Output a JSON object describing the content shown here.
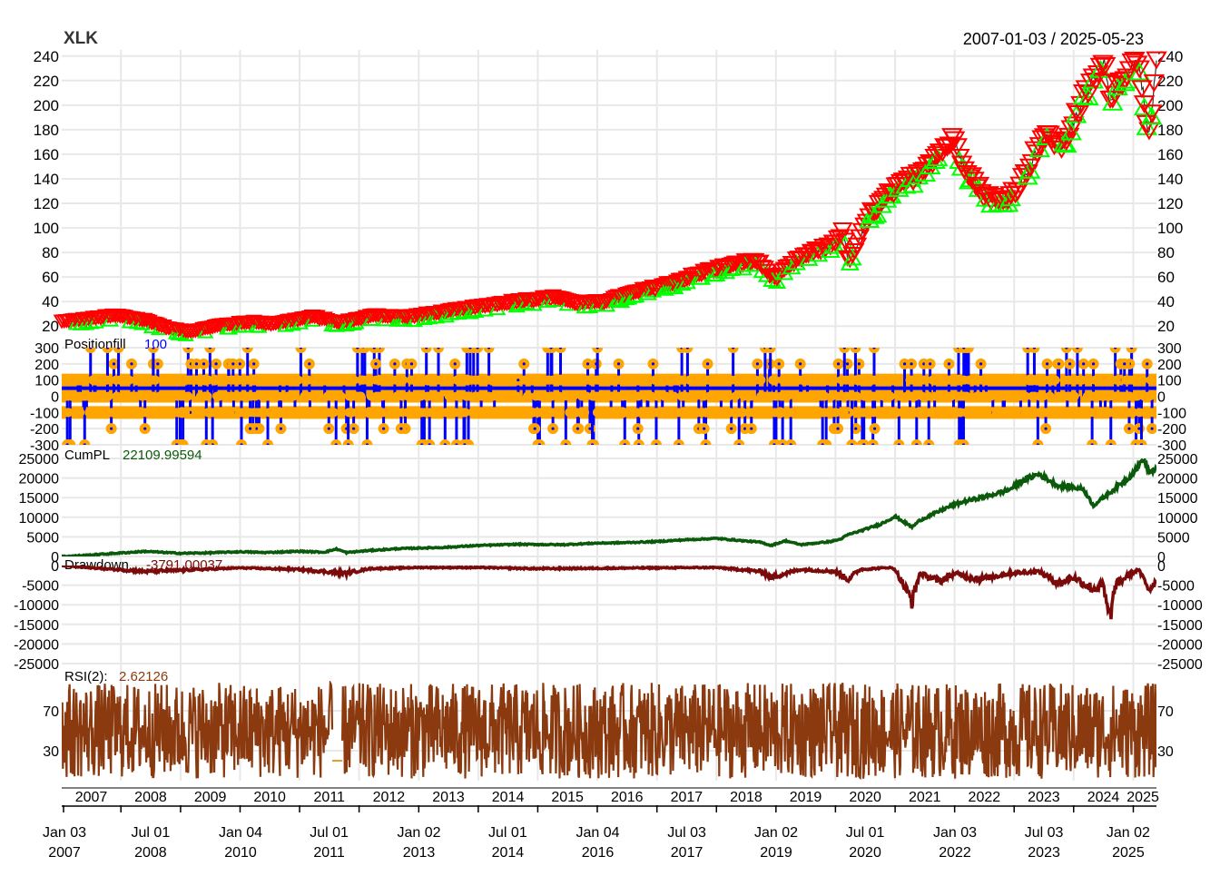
{
  "chart_data": [
    {
      "type": "line",
      "panel": "price",
      "title": "XLK",
      "date_range_label": "2007-01-03 / 2025-05-23",
      "ylim": [
        15,
        245
      ],
      "yticks": [
        20,
        40,
        60,
        80,
        100,
        120,
        140,
        160,
        180,
        200,
        220,
        240
      ],
      "grid": true,
      "series": [
        {
          "color": "#ff0000",
          "x": [
            "2007-01-03",
            "2007-06-01",
            "2007-12-01",
            "2008-06-01",
            "2008-11-01",
            "2009-03-09",
            "2009-09-01",
            "2010-04-01",
            "2010-07-01",
            "2011-04-01",
            "2011-09-01",
            "2012-04-01",
            "2012-11-01",
            "2013-06-01",
            "2014-01-01",
            "2014-09-01",
            "2015-05-01",
            "2015-08-24",
            "2016-02-01",
            "2016-09-01",
            "2017-03-01",
            "2017-12-01",
            "2018-09-01",
            "2018-12-24",
            "2019-06-01",
            "2019-12-01",
            "2020-02-19",
            "2020-03-23",
            "2020-08-01",
            "2020-12-01",
            "2021-06-01",
            "2021-12-27",
            "2022-03-01",
            "2022-06-16",
            "2022-10-13",
            "2023-02-01",
            "2023-07-01",
            "2023-10-27",
            "2024-03-01",
            "2024-07-10",
            "2024-08-05",
            "2024-12-01",
            "2025-02-01",
            "2025-04-08",
            "2025-05-23"
          ],
          "values": [
            23,
            25,
            28,
            24,
            17,
            15,
            20,
            23,
            21,
            27,
            22,
            28,
            27,
            31,
            35,
            40,
            43,
            38,
            39,
            47,
            53,
            65,
            73,
            58,
            75,
            85,
            96,
            70,
            110,
            127,
            145,
            172,
            150,
            128,
            120,
            133,
            175,
            165,
            205,
            235,
            205,
            228,
            238,
            175,
            231
          ]
        }
      ],
      "markers": [
        {
          "symbol": "triangle-up",
          "color": "#00ff00",
          "meaning": "entries"
        },
        {
          "symbol": "triangle-down",
          "color": "#ff0000",
          "meaning": "exits"
        }
      ]
    },
    {
      "type": "bar",
      "panel": "positionfill",
      "label": "Positionfill",
      "last_value": "100",
      "ylim": [
        -300,
        300
      ],
      "yticks": [
        -300,
        -200,
        -100,
        0,
        100,
        200,
        300
      ],
      "series": [
        {
          "color": "#0000ff",
          "point_color": "#ffa500"
        }
      ],
      "levels": [
        -300,
        -200,
        -100,
        0,
        100,
        200,
        300
      ]
    },
    {
      "type": "line",
      "panel": "cumpl",
      "label": "CumPL",
      "last_value": "22109.99594",
      "ylim": [
        0,
        25000
      ],
      "yticks": [
        0,
        5000,
        10000,
        15000,
        20000,
        25000
      ],
      "series": [
        {
          "color": "#0b5a0b",
          "x": [
            "2007-01-03",
            "2007-06-01",
            "2008-01-01",
            "2008-06-01",
            "2009-01-01",
            "2009-06-01",
            "2010-01-01",
            "2010-06-01",
            "2011-01-01",
            "2011-06-01",
            "2011-08-15",
            "2011-10-15",
            "2012-03-01",
            "2012-09-01",
            "2013-06-01",
            "2014-01-01",
            "2014-09-01",
            "2015-06-01",
            "2016-01-01",
            "2016-06-01",
            "2017-01-01",
            "2017-06-01",
            "2018-01-01",
            "2018-10-01",
            "2018-12-01",
            "2019-03-01",
            "2019-06-01",
            "2019-12-01",
            "2020-02-01",
            "2020-03-15",
            "2020-06-01",
            "2020-10-01",
            "2021-01-01",
            "2021-04-15",
            "2021-06-01",
            "2021-09-01",
            "2021-12-15",
            "2022-03-01",
            "2022-08-01",
            "2022-12-01",
            "2023-03-01",
            "2023-06-01",
            "2023-08-01",
            "2023-10-01",
            "2023-12-01",
            "2024-03-01",
            "2024-05-01",
            "2024-08-01",
            "2024-12-01",
            "2025-02-01",
            "2025-03-01",
            "2025-04-08",
            "2025-05-23"
          ],
          "values": [
            0,
            300,
            900,
            1300,
            800,
            900,
            1200,
            1000,
            1300,
            1100,
            1900,
            1000,
            1500,
            2000,
            2300,
            2800,
            3100,
            3000,
            3400,
            3500,
            3800,
            4200,
            4600,
            3600,
            2800,
            4000,
            3000,
            3800,
            4400,
            5500,
            6500,
            8200,
            10200,
            7500,
            9200,
            11000,
            13000,
            14000,
            15500,
            17000,
            19500,
            21000,
            19500,
            18000,
            17800,
            17200,
            13000,
            16000,
            20000,
            23000,
            25000,
            21500,
            22110
          ]
        }
      ]
    },
    {
      "type": "line",
      "panel": "drawdown",
      "label": "Drawdown",
      "last_value": "-3791.00037",
      "ylim": [
        -25000,
        0
      ],
      "yticks": [
        -25000,
        -20000,
        -15000,
        -10000,
        -5000,
        0
      ],
      "series": [
        {
          "color": "#7b0a0a",
          "x": [
            "2007-01-03",
            "2007-06-01",
            "2008-06-01",
            "2009-01-01",
            "2010-01-01",
            "2011-01-01",
            "2011-10-15",
            "2012-03-01",
            "2013-01-01",
            "2014-01-01",
            "2015-01-01",
            "2016-01-01",
            "2017-01-01",
            "2018-01-01",
            "2018-10-01",
            "2018-12-01",
            "2019-06-01",
            "2020-01-01",
            "2020-03-15",
            "2020-06-01",
            "2020-12-01",
            "2021-01-01",
            "2021-04-15",
            "2021-06-01",
            "2021-10-01",
            "2022-01-01",
            "2022-06-01",
            "2022-12-01",
            "2023-06-01",
            "2023-10-01",
            "2024-01-01",
            "2024-05-01",
            "2024-07-01",
            "2024-08-05",
            "2024-09-15",
            "2024-12-01",
            "2025-02-01",
            "2025-04-08",
            "2025-05-23"
          ],
          "values": [
            0,
            -500,
            -1500,
            -1200,
            -600,
            -1000,
            -2000,
            -800,
            -500,
            -500,
            -800,
            -700,
            -600,
            -500,
            -1500,
            -3000,
            -1000,
            -1500,
            -3500,
            -1000,
            -500,
            -1000,
            -9000,
            -2000,
            -4000,
            -2000,
            -3500,
            -2000,
            -1500,
            -4500,
            -3000,
            -6000,
            -5000,
            -14000,
            -5000,
            -2500,
            -1000,
            -6000,
            -3791
          ]
        }
      ]
    },
    {
      "type": "line",
      "panel": "rsi",
      "label": "RSI(2):",
      "last_value": "2.62126",
      "ylim": [
        0,
        100
      ],
      "yticks": [
        30,
        70
      ],
      "series": [
        {
          "color": "#8b3a0f"
        }
      ]
    }
  ],
  "xaxis": {
    "year_labels": [
      "2007",
      "2008",
      "2009",
      "2010",
      "2011",
      "2012",
      "2013",
      "2014",
      "2015",
      "2016",
      "2017",
      "2018",
      "2019",
      "2020",
      "2021",
      "2022",
      "2023",
      "2024",
      "2025"
    ],
    "date_ticks": [
      {
        "line1": "Jan 03",
        "line2": "2007",
        "date": "2007-01-03"
      },
      {
        "line1": "Jul 01",
        "line2": "2008",
        "date": "2008-07-01"
      },
      {
        "line1": "Jan 04",
        "line2": "2010",
        "date": "2010-01-04"
      },
      {
        "line1": "Jul 01",
        "line2": "2011",
        "date": "2011-07-01"
      },
      {
        "line1": "Jan 02",
        "line2": "2013",
        "date": "2013-01-02"
      },
      {
        "line1": "Jul 01",
        "line2": "2014",
        "date": "2014-07-01"
      },
      {
        "line1": "Jan 04",
        "line2": "2016",
        "date": "2016-01-04"
      },
      {
        "line1": "Jul 03",
        "line2": "2017",
        "date": "2017-07-03"
      },
      {
        "line1": "Jan 02",
        "line2": "2019",
        "date": "2019-01-02"
      },
      {
        "line1": "Jul 01",
        "line2": "2020",
        "date": "2020-07-01"
      },
      {
        "line1": "Jan 03",
        "line2": "2022",
        "date": "2022-01-03"
      },
      {
        "line1": "Jul 03",
        "line2": "2023",
        "date": "2023-07-03"
      },
      {
        "line1": "Jan 02",
        "line2": "2025",
        "date": "2025-01-02"
      }
    ],
    "start": "2007-01-03",
    "end": "2025-05-23"
  },
  "colors": {
    "grid": "#e8e8e8",
    "axis_text": "#000000",
    "title": "#333333",
    "positionfill_value": "#0000ff",
    "cumpl_value": "#0b5a0b",
    "drawdown_value": "#7b0a0a",
    "rsi_value": "#8b3a0f"
  }
}
